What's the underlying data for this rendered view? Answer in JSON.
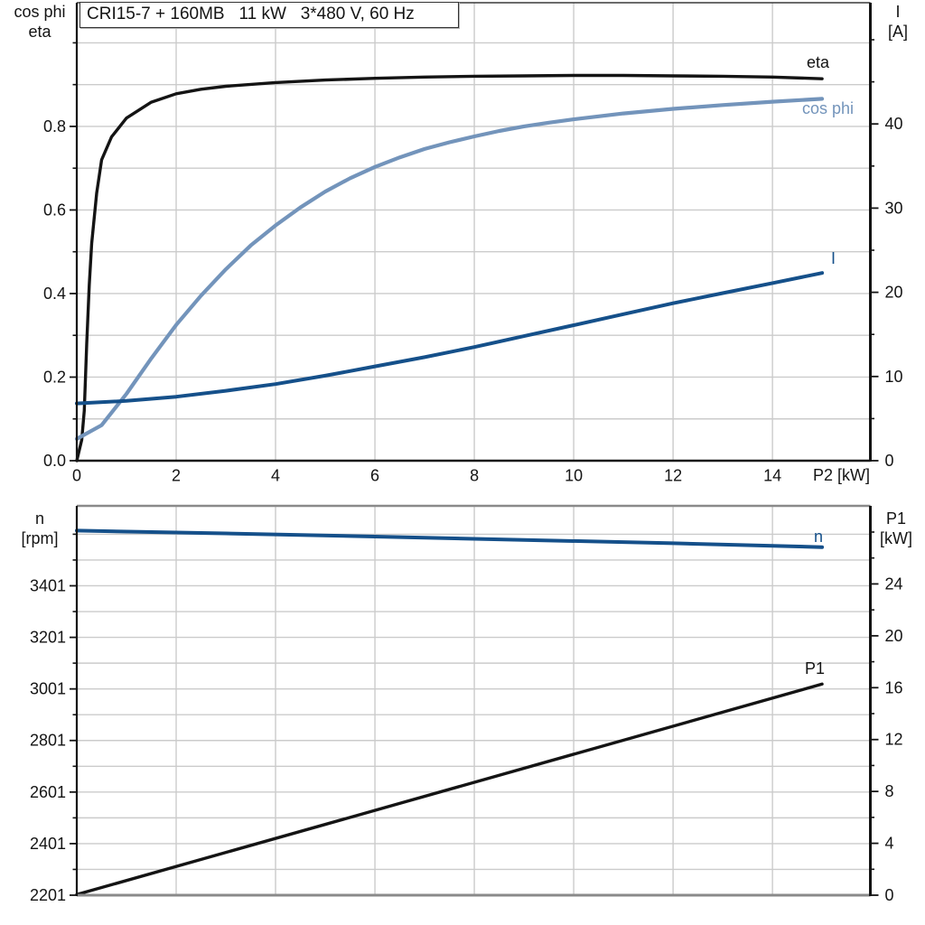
{
  "palette": {
    "background": "#ffffff",
    "grid": "#cbcbcb",
    "axis": "#141414",
    "frame_gray": "#8a8a8a",
    "black_curve": "#141414",
    "light_blue": "#7394bb",
    "dark_blue": "#15508a"
  },
  "chart_data": [
    {
      "id": "top",
      "type": "line",
      "title": "CRI15-7 + 160MB   11 kW   3*480 V, 60 Hz",
      "xlabel": "P2 [kW]",
      "x_axis": {
        "lim": [
          0,
          15.97
        ],
        "ticks": [
          0,
          2,
          4,
          6,
          8,
          10,
          12,
          14
        ],
        "tick_labels": [
          "0",
          "2",
          "4",
          "6",
          "8",
          "10",
          "12",
          "14"
        ]
      },
      "left_axis": {
        "title": [
          "cos phi",
          "eta"
        ],
        "lim": [
          0,
          1.096
        ],
        "major_ticks": [
          0,
          0.2,
          0.4,
          0.6,
          0.8
        ],
        "tick_labels": [
          "0.0",
          "0.2",
          "0.4",
          "0.6",
          "0.8"
        ],
        "grid_step": 0.1,
        "minor_step": 0.1
      },
      "right_axis": {
        "title": [
          "I",
          "[A]"
        ],
        "lim": [
          0,
          54.4
        ],
        "major_ticks": [
          0,
          10,
          20,
          30,
          40
        ],
        "tick_labels": [
          "0",
          "10",
          "20",
          "30",
          "40"
        ],
        "minor_step": 5
      },
      "series": [
        {
          "name": "eta",
          "label": "eta",
          "axis": "left",
          "color": "#141414",
          "x": [
            0,
            0.1,
            0.15,
            0.2,
            0.25,
            0.3,
            0.4,
            0.5,
            0.7,
            1,
            1.5,
            2,
            2.5,
            3,
            4,
            5,
            6,
            7,
            8,
            9,
            10,
            11,
            12,
            13,
            14,
            15
          ],
          "y": [
            0,
            0.05,
            0.12,
            0.28,
            0.42,
            0.52,
            0.64,
            0.72,
            0.775,
            0.82,
            0.858,
            0.878,
            0.889,
            0.896,
            0.905,
            0.911,
            0.915,
            0.918,
            0.92,
            0.921,
            0.922,
            0.922,
            0.921,
            0.92,
            0.918,
            0.914
          ]
        },
        {
          "name": "cos_phi",
          "label": "cos phi",
          "axis": "left",
          "color": "#7394bb",
          "x": [
            0,
            0.5,
            1,
            1.5,
            2,
            2.5,
            3,
            3.5,
            4,
            4.5,
            5,
            5.5,
            6,
            6.5,
            7,
            7.5,
            8,
            8.5,
            9,
            9.5,
            10,
            11,
            12,
            13,
            14,
            15
          ],
          "y": [
            0.052,
            0.085,
            0.16,
            0.245,
            0.325,
            0.395,
            0.458,
            0.515,
            0.563,
            0.606,
            0.644,
            0.676,
            0.703,
            0.726,
            0.746,
            0.762,
            0.776,
            0.789,
            0.8,
            0.809,
            0.817,
            0.831,
            0.842,
            0.851,
            0.859,
            0.866
          ]
        },
        {
          "name": "I",
          "label": "I",
          "axis": "right",
          "color": "#15508a",
          "x": [
            0,
            1,
            2,
            3,
            4,
            5,
            6,
            7,
            8,
            9,
            10,
            11,
            12,
            13,
            14,
            15
          ],
          "y": [
            6.8,
            7.1,
            7.6,
            8.3,
            9.1,
            10.1,
            11.2,
            12.3,
            13.5,
            14.8,
            16.1,
            17.4,
            18.7,
            19.9,
            21.1,
            22.3
          ]
        }
      ]
    },
    {
      "id": "bottom",
      "type": "line",
      "title": "",
      "xlabel": "",
      "x_axis": {
        "lim": [
          0,
          15.97
        ],
        "ticks": [
          2,
          4,
          6,
          8,
          10,
          12,
          14
        ],
        "tick_labels": []
      },
      "left_axis": {
        "title": [
          "n",
          "[rpm]"
        ],
        "lim": [
          2201,
          3711
        ],
        "major_ticks": [
          2201,
          2401,
          2601,
          2801,
          3001,
          3201,
          3401
        ],
        "tick_labels": [
          "2201",
          "2401",
          "2601",
          "2801",
          "3001",
          "3201",
          "3401"
        ],
        "grid_step": 100,
        "minor_step": 100
      },
      "right_axis": {
        "title": [
          "P1",
          "[kW]"
        ],
        "lim": [
          0,
          30.02
        ],
        "major_ticks": [
          0,
          4,
          8,
          12,
          16,
          20,
          24
        ],
        "tick_labels": [
          "0",
          "4",
          "8",
          "12",
          "16",
          "20",
          "24"
        ],
        "minor_step": 2
      },
      "series": [
        {
          "name": "n",
          "label": "n",
          "axis": "left",
          "color": "#15508a",
          "x": [
            0,
            3,
            6,
            9,
            12,
            15
          ],
          "y": [
            3615,
            3604,
            3592,
            3579,
            3566,
            3551
          ]
        },
        {
          "name": "P1",
          "label": "P1",
          "axis": "right",
          "color": "#141414",
          "x": [
            0,
            15
          ],
          "y": [
            0.05,
            16.28
          ]
        }
      ]
    }
  ]
}
